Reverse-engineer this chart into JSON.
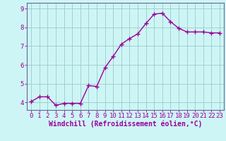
{
  "x": [
    0,
    1,
    2,
    3,
    4,
    5,
    6,
    7,
    8,
    9,
    10,
    11,
    12,
    13,
    14,
    15,
    16,
    17,
    18,
    19,
    20,
    21,
    22,
    23
  ],
  "y": [
    4.05,
    4.3,
    4.3,
    3.85,
    3.95,
    3.95,
    3.95,
    4.9,
    4.85,
    5.85,
    6.45,
    7.1,
    7.4,
    7.65,
    8.2,
    8.7,
    8.75,
    8.3,
    7.95,
    7.75,
    7.75,
    7.75,
    7.7,
    7.7
  ],
  "line_color": "#990099",
  "marker": "+",
  "marker_size": 4,
  "linewidth": 1.0,
  "bg_color": "#cef5f5",
  "grid_color": "#99cccc",
  "xlabel": "Windchill (Refroidissement éolien,°C)",
  "xlabel_fontsize": 7,
  "tick_fontsize": 6.5,
  "ylim": [
    3.6,
    9.3
  ],
  "xlim": [
    -0.5,
    23.5
  ],
  "yticks": [
    4,
    5,
    6,
    7,
    8,
    9
  ],
  "xticks": [
    0,
    1,
    2,
    3,
    4,
    5,
    6,
    7,
    8,
    9,
    10,
    11,
    12,
    13,
    14,
    15,
    16,
    17,
    18,
    19,
    20,
    21,
    22,
    23
  ],
  "spine_color": "#666699"
}
